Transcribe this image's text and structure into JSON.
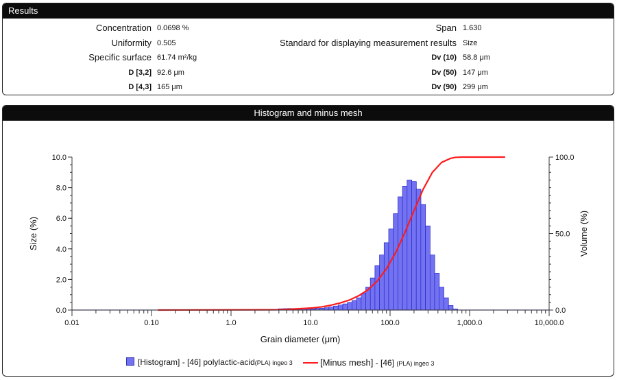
{
  "results": {
    "title": "Results",
    "left": [
      {
        "label": "Concentration",
        "value": "0.0698 %",
        "bold": false
      },
      {
        "label": "Uniformity",
        "value": "0.505",
        "bold": false
      },
      {
        "label": "Specific surface",
        "value": "61.74 m²/kg",
        "bold": false
      },
      {
        "label": "D [3,2]",
        "value": "92.6 μm",
        "bold": true
      },
      {
        "label": "D [4,3]",
        "value": "165 μm",
        "bold": true
      }
    ],
    "right": [
      {
        "label": "Span",
        "value": "1.630",
        "bold": false
      },
      {
        "label": "Standard for displaying measurement results",
        "value": "Size",
        "bold": false
      },
      {
        "label": "Dv (10)",
        "value": "58.8 μm",
        "bold": true
      },
      {
        "label": "Dv (50)",
        "value": "147 μm",
        "bold": true
      },
      {
        "label": "Dv (90)",
        "value": "299 μm",
        "bold": true
      }
    ]
  },
  "hist_panel": {
    "title": "Histogram and minus mesh"
  },
  "legend": {
    "hist_name": "[Histogram]",
    "hist_rest": "- [46] polylactic-acid",
    "hist_small": "(PLA) ingeo 3",
    "mesh_name": "[Minus mesh]",
    "mesh_rest": "- [46]",
    "mesh_small": "(PLA) ingeo 3"
  },
  "colors": {
    "bar_fill": "#7373f2",
    "bar_stroke": "#2424c8",
    "line": "#ff1a1a",
    "axis": "#333333"
  },
  "chart_data": {
    "type": "bar",
    "title": "",
    "xlabel": "Grain diameter (μm)",
    "ylabel": "Size (%)",
    "y2label": "Volume (%)",
    "x_scale": "log",
    "xlim": [
      0.01,
      10000
    ],
    "ylim": [
      0,
      10
    ],
    "y2lim": [
      0,
      100
    ],
    "x_ticks": [
      "0.01",
      "0.10",
      "1.0",
      "10.0",
      "100.0",
      "1,000.0",
      "10,000.0"
    ],
    "y_ticks": [
      "0.0",
      "2.0",
      "4.0",
      "6.0",
      "8.0",
      "10.0"
    ],
    "y2_ticks": [
      "0.0",
      "50.0",
      "100.0"
    ],
    "grid": false,
    "legend_position": "bottom",
    "series": [
      {
        "name": "[Histogram] - [46] polylactic-acid (PLA) ingeo 3",
        "type": "bar",
        "x": [
          3.7,
          4.2,
          4.8,
          5.5,
          6.3,
          7.2,
          8.2,
          9.4,
          10.7,
          12.2,
          14.0,
          16.0,
          18.2,
          20.8,
          23.8,
          27.2,
          31.1,
          35.5,
          40.5,
          46.3,
          52.9,
          60.4,
          69.0,
          78.8,
          90.0,
          102.8,
          117.4,
          134.1,
          153.2,
          175.0,
          199.9,
          228.3,
          260.8,
          297.9,
          340.3,
          388.7,
          444.0,
          507.2,
          579.4,
          661.8
        ],
        "y": [
          0.05,
          0.08,
          0.09,
          0.1,
          0.1,
          0.1,
          0.09,
          0.08,
          0.08,
          0.1,
          0.12,
          0.15,
          0.2,
          0.26,
          0.33,
          0.4,
          0.5,
          0.62,
          0.8,
          1.1,
          1.5,
          2.1,
          2.9,
          3.6,
          4.4,
          5.3,
          6.3,
          7.4,
          8.1,
          8.5,
          8.4,
          7.9,
          6.9,
          5.5,
          3.6,
          2.4,
          1.5,
          0.8,
          0.3,
          0.07
        ]
      },
      {
        "name": "[Minus mesh] - [46] (PLA) ingeo 3",
        "type": "line",
        "axis": "right",
        "x": [
          0.12,
          3.7,
          6.0,
          8.2,
          10.7,
          14.0,
          18.2,
          23.8,
          31.1,
          40.5,
          52.9,
          69.0,
          90.0,
          117.4,
          153.2,
          199.9,
          260.8,
          340.3,
          444.0,
          579.4,
          661.8,
          800.0,
          1200.0,
          2800.0
        ],
        "y": [
          0.0,
          0.2,
          0.6,
          1.0,
          1.4,
          2.1,
          3.2,
          4.7,
          6.6,
          9.4,
          13.3,
          19.0,
          27.0,
          37.5,
          50.5,
          65.0,
          79.0,
          90.0,
          96.5,
          99.2,
          99.8,
          100.0,
          100.0,
          100.0
        ]
      }
    ]
  }
}
